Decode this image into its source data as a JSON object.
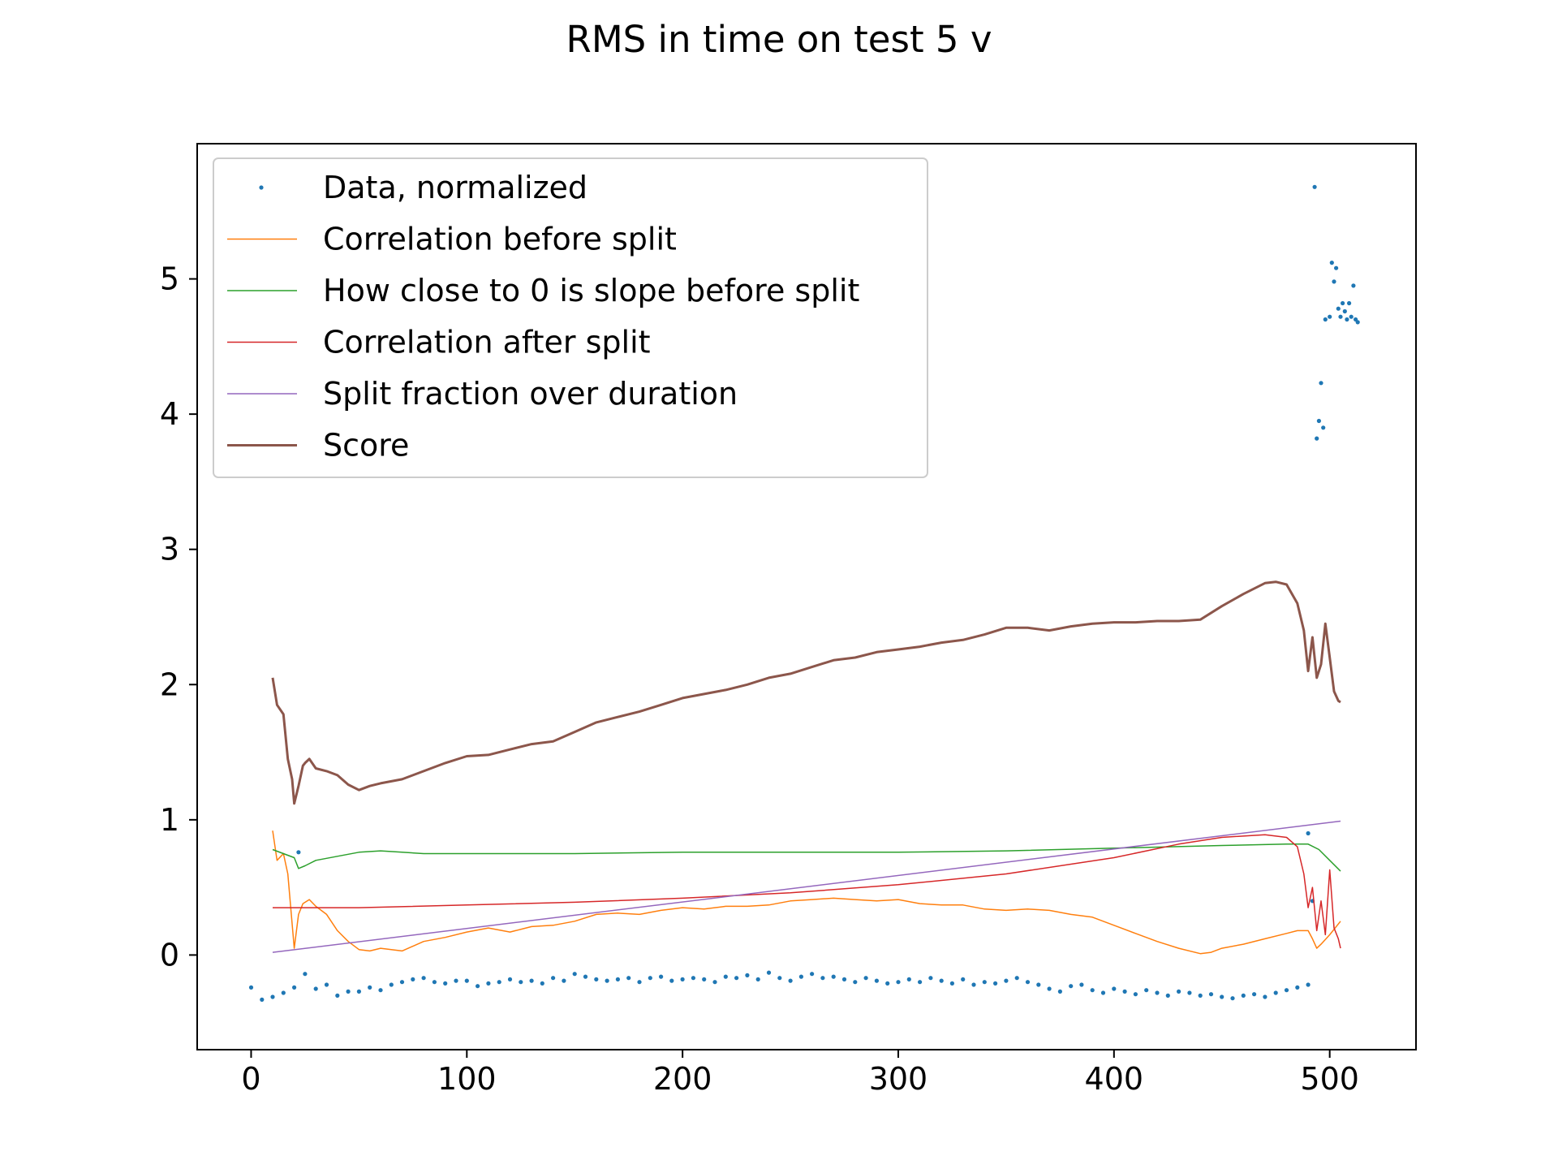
{
  "chart_data": {
    "type": "line",
    "title": "RMS in time on test 5 v",
    "xlabel": "",
    "ylabel": "",
    "xlim": [
      -25,
      540
    ],
    "ylim": [
      -0.7,
      6.0
    ],
    "x_ticks": [
      0,
      100,
      200,
      300,
      400,
      500
    ],
    "y_ticks": [
      0,
      1,
      2,
      3,
      4,
      5
    ],
    "grid": false,
    "legend_position": "upper-left",
    "series": [
      {
        "name": "Data, normalized",
        "kind": "scatter",
        "color": "#1f77b4",
        "x": [
          0,
          5,
          10,
          15,
          20,
          22,
          25,
          30,
          35,
          40,
          45,
          50,
          55,
          60,
          65,
          70,
          75,
          80,
          85,
          90,
          95,
          100,
          105,
          110,
          115,
          120,
          125,
          130,
          135,
          140,
          145,
          150,
          155,
          160,
          165,
          170,
          175,
          180,
          185,
          190,
          195,
          200,
          205,
          210,
          215,
          220,
          225,
          230,
          235,
          240,
          245,
          250,
          255,
          260,
          265,
          270,
          275,
          280,
          285,
          290,
          295,
          300,
          305,
          310,
          315,
          320,
          325,
          330,
          335,
          340,
          345,
          350,
          355,
          360,
          365,
          370,
          375,
          380,
          385,
          390,
          395,
          400,
          405,
          410,
          415,
          420,
          425,
          430,
          435,
          440,
          445,
          450,
          455,
          460,
          465,
          470,
          475,
          480,
          485,
          490,
          490,
          492,
          493,
          494,
          495,
          496,
          497,
          498,
          500,
          501,
          502,
          503,
          504,
          505,
          506,
          507,
          508,
          509,
          510,
          511,
          512,
          513
        ],
        "y": [
          -0.24,
          -0.33,
          -0.31,
          -0.28,
          -0.24,
          0.76,
          -0.14,
          -0.25,
          -0.22,
          -0.3,
          -0.27,
          -0.27,
          -0.24,
          -0.26,
          -0.22,
          -0.2,
          -0.18,
          -0.17,
          -0.2,
          -0.21,
          -0.19,
          -0.19,
          -0.23,
          -0.21,
          -0.2,
          -0.18,
          -0.2,
          -0.19,
          -0.21,
          -0.17,
          -0.19,
          -0.14,
          -0.16,
          -0.18,
          -0.19,
          -0.18,
          -0.17,
          -0.2,
          -0.17,
          -0.16,
          -0.19,
          -0.18,
          -0.17,
          -0.18,
          -0.2,
          -0.16,
          -0.17,
          -0.15,
          -0.18,
          -0.13,
          -0.17,
          -0.19,
          -0.16,
          -0.14,
          -0.17,
          -0.16,
          -0.18,
          -0.2,
          -0.17,
          -0.19,
          -0.21,
          -0.2,
          -0.18,
          -0.2,
          -0.17,
          -0.19,
          -0.21,
          -0.18,
          -0.22,
          -0.2,
          -0.21,
          -0.19,
          -0.17,
          -0.2,
          -0.22,
          -0.25,
          -0.27,
          -0.23,
          -0.22,
          -0.26,
          -0.28,
          -0.25,
          -0.27,
          -0.29,
          -0.26,
          -0.28,
          -0.3,
          -0.27,
          -0.28,
          -0.3,
          -0.29,
          -0.31,
          -0.32,
          -0.3,
          -0.29,
          -0.31,
          -0.28,
          -0.26,
          -0.24,
          -0.22,
          0.9,
          0.4,
          5.68,
          3.82,
          3.95,
          4.23,
          3.9,
          4.7,
          4.72,
          5.12,
          4.98,
          5.08,
          4.78,
          4.72,
          4.82,
          4.76,
          4.7,
          4.82,
          4.72,
          4.95,
          4.7,
          4.68
        ]
      },
      {
        "name": "Correlation before split",
        "kind": "line",
        "color": "#ff7f0e",
        "x": [
          10,
          12,
          15,
          17,
          20,
          22,
          24,
          27,
          30,
          35,
          40,
          45,
          50,
          55,
          60,
          70,
          80,
          90,
          100,
          110,
          120,
          130,
          140,
          150,
          160,
          170,
          180,
          190,
          200,
          210,
          220,
          230,
          240,
          250,
          260,
          270,
          280,
          290,
          300,
          310,
          320,
          330,
          340,
          350,
          360,
          370,
          380,
          390,
          400,
          410,
          420,
          430,
          440,
          445,
          450,
          460,
          470,
          480,
          485,
          490,
          492,
          494,
          496,
          500,
          505
        ],
        "y": [
          0.92,
          0.7,
          0.75,
          0.6,
          0.05,
          0.3,
          0.38,
          0.41,
          0.36,
          0.3,
          0.18,
          0.1,
          0.04,
          0.03,
          0.05,
          0.03,
          0.1,
          0.13,
          0.17,
          0.2,
          0.17,
          0.21,
          0.22,
          0.25,
          0.3,
          0.31,
          0.3,
          0.33,
          0.35,
          0.34,
          0.36,
          0.36,
          0.37,
          0.4,
          0.41,
          0.42,
          0.41,
          0.4,
          0.41,
          0.38,
          0.37,
          0.37,
          0.34,
          0.33,
          0.34,
          0.33,
          0.3,
          0.28,
          0.22,
          0.16,
          0.1,
          0.05,
          0.01,
          0.02,
          0.05,
          0.08,
          0.12,
          0.16,
          0.18,
          0.18,
          0.12,
          0.05,
          0.08,
          0.15,
          0.25
        ]
      },
      {
        "name": "How close to 0 is slope before split",
        "kind": "line",
        "color": "#2ca02c",
        "x": [
          10,
          15,
          20,
          22,
          25,
          30,
          40,
          50,
          60,
          70,
          80,
          100,
          150,
          200,
          250,
          300,
          350,
          400,
          450,
          480,
          490,
          495,
          500,
          505
        ],
        "y": [
          0.78,
          0.75,
          0.72,
          0.64,
          0.66,
          0.7,
          0.73,
          0.76,
          0.77,
          0.76,
          0.75,
          0.75,
          0.75,
          0.76,
          0.76,
          0.76,
          0.77,
          0.79,
          0.81,
          0.82,
          0.82,
          0.78,
          0.7,
          0.62
        ]
      },
      {
        "name": "Correlation after split",
        "kind": "line",
        "color": "#d62728",
        "x": [
          10,
          50,
          100,
          150,
          200,
          250,
          300,
          350,
          400,
          430,
          450,
          470,
          480,
          485,
          488,
          490,
          492,
          494,
          496,
          498,
          500,
          502,
          504,
          505
        ],
        "y": [
          0.35,
          0.35,
          0.37,
          0.39,
          0.42,
          0.46,
          0.52,
          0.6,
          0.72,
          0.82,
          0.87,
          0.89,
          0.87,
          0.8,
          0.6,
          0.35,
          0.5,
          0.18,
          0.4,
          0.15,
          0.63,
          0.2,
          0.12,
          0.05
        ]
      },
      {
        "name": "Split fraction over duration",
        "kind": "line",
        "color": "#9467bd",
        "x": [
          10,
          505
        ],
        "y": [
          0.02,
          0.99
        ]
      },
      {
        "name": "Score",
        "kind": "line",
        "color": "#8c564b",
        "x": [
          10,
          12,
          15,
          17,
          19,
          20,
          22,
          24,
          25,
          27,
          30,
          35,
          40,
          45,
          50,
          55,
          60,
          70,
          80,
          90,
          100,
          110,
          120,
          130,
          140,
          150,
          160,
          170,
          180,
          190,
          200,
          210,
          220,
          230,
          240,
          250,
          260,
          270,
          280,
          290,
          300,
          310,
          320,
          330,
          340,
          350,
          360,
          370,
          380,
          390,
          400,
          410,
          420,
          430,
          440,
          450,
          460,
          470,
          475,
          480,
          485,
          488,
          490,
          492,
          494,
          496,
          498,
          500,
          502,
          504,
          505
        ],
        "y": [
          2.05,
          1.85,
          1.78,
          1.45,
          1.3,
          1.12,
          1.25,
          1.4,
          1.42,
          1.45,
          1.38,
          1.36,
          1.33,
          1.26,
          1.22,
          1.25,
          1.27,
          1.3,
          1.36,
          1.42,
          1.47,
          1.48,
          1.52,
          1.56,
          1.58,
          1.65,
          1.72,
          1.76,
          1.8,
          1.85,
          1.9,
          1.93,
          1.96,
          2.0,
          2.05,
          2.08,
          2.13,
          2.18,
          2.2,
          2.24,
          2.26,
          2.28,
          2.31,
          2.33,
          2.37,
          2.42,
          2.42,
          2.4,
          2.43,
          2.45,
          2.46,
          2.46,
          2.47,
          2.47,
          2.48,
          2.58,
          2.67,
          2.75,
          2.76,
          2.74,
          2.6,
          2.4,
          2.1,
          2.35,
          2.05,
          2.15,
          2.45,
          2.2,
          1.95,
          1.88,
          1.87
        ]
      }
    ]
  }
}
